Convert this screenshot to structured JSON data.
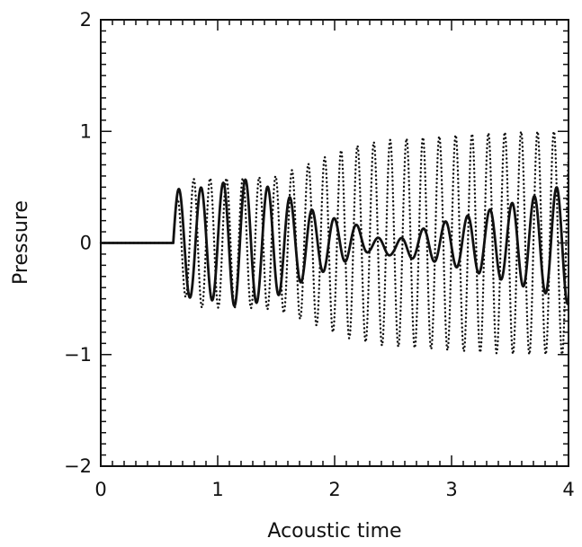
{
  "chart_data": {
    "type": "line",
    "title": "",
    "xlabel": "Acoustic time",
    "ylabel": "Pressure",
    "xlim": [
      0,
      4
    ],
    "ylim": [
      -2,
      2
    ],
    "xticks": [
      0,
      1,
      2,
      3,
      4
    ],
    "yticks": [
      -2,
      -1,
      0,
      1,
      2
    ],
    "grid": false,
    "legend": "none",
    "series": [
      {
        "style": "solid",
        "color": "#111111",
        "onset": 0.62,
        "period": 0.19,
        "envelope": [
          [
            0.62,
            0.48
          ],
          [
            0.9,
            0.5
          ],
          [
            1.2,
            0.58
          ],
          [
            1.5,
            0.48
          ],
          [
            1.8,
            0.3
          ],
          [
            2.05,
            0.2
          ],
          [
            2.3,
            0.08
          ],
          [
            2.5,
            0.06
          ],
          [
            2.75,
            0.14
          ],
          [
            3.05,
            0.22
          ],
          [
            3.4,
            0.32
          ],
          [
            3.8,
            0.45
          ],
          [
            4.0,
            0.55
          ]
        ],
        "offset": [
          [
            0.62,
            0.0
          ],
          [
            2.0,
            0.0
          ],
          [
            2.2,
            0.03
          ],
          [
            2.45,
            -0.05
          ],
          [
            2.65,
            -0.03
          ],
          [
            2.85,
            0.0
          ],
          [
            4.0,
            0.0
          ]
        ]
      },
      {
        "style": "dotted",
        "color": "#111111",
        "onset": 0.62,
        "period": 0.14,
        "envelope": [
          [
            0.62,
            0.35
          ],
          [
            0.8,
            0.58
          ],
          [
            1.2,
            0.58
          ],
          [
            1.5,
            0.6
          ],
          [
            1.8,
            0.72
          ],
          [
            2.1,
            0.85
          ],
          [
            2.4,
            0.92
          ],
          [
            2.8,
            0.95
          ],
          [
            3.2,
            0.98
          ],
          [
            3.6,
            1.0
          ],
          [
            4.0,
            1.0
          ]
        ],
        "offset": [
          [
            0.62,
            0.0
          ],
          [
            4.0,
            0.0
          ]
        ]
      }
    ]
  }
}
